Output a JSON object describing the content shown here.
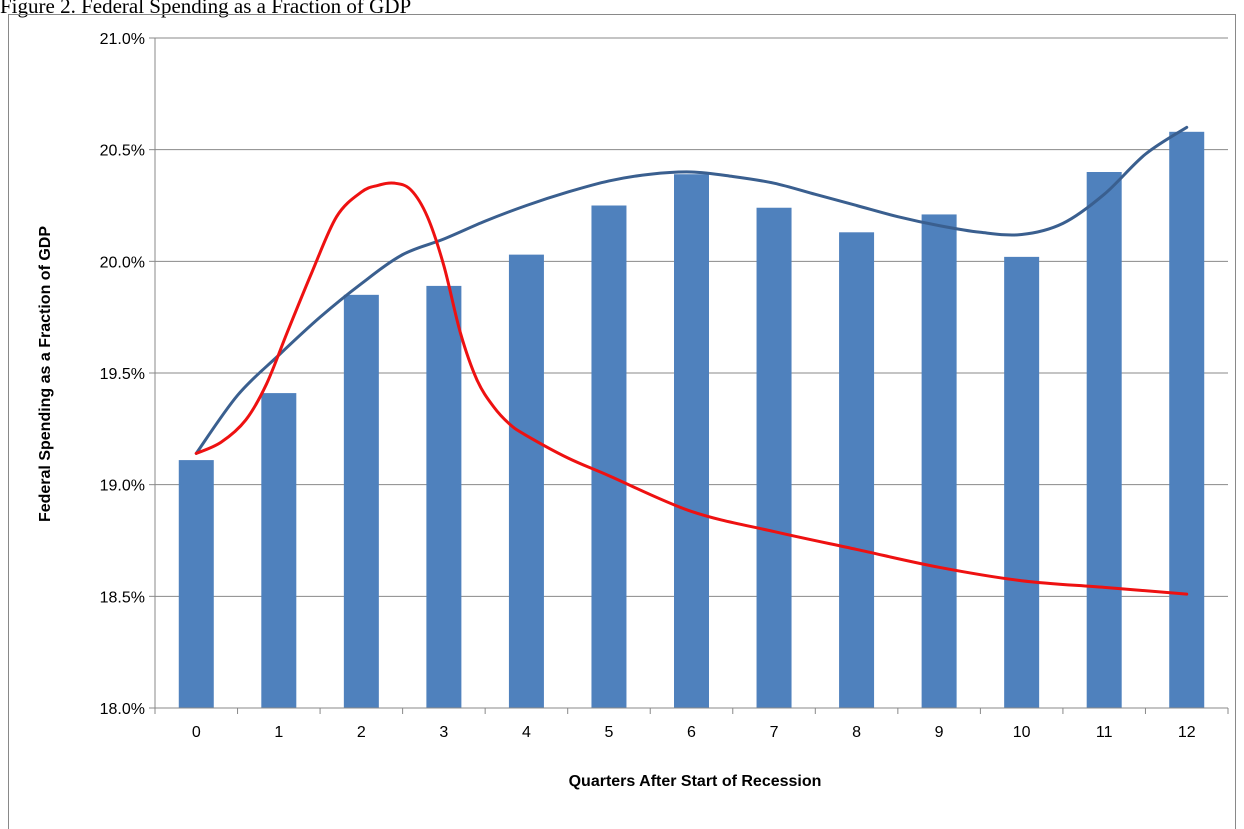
{
  "caption": "Figure 2. Federal Spending as a Fraction of GDP",
  "colors": {
    "bar": "#4f81bd",
    "trend": "#3a5f8f",
    "projection": "#ee1111",
    "grid": "#898989"
  },
  "chart_data": {
    "type": "bar",
    "xlabel": "Quarters After Start of Recession",
    "ylabel": "Federal Spending as a Fraction of GDP",
    "categories": [
      "0",
      "1",
      "2",
      "3",
      "4",
      "5",
      "6",
      "7",
      "8",
      "9",
      "10",
      "11",
      "12"
    ],
    "values": [
      19.11,
      19.41,
      19.85,
      19.89,
      20.03,
      20.25,
      20.39,
      20.24,
      20.13,
      20.21,
      20.02,
      20.4,
      20.58
    ],
    "ylim": [
      18.0,
      21.0
    ],
    "yticks": [
      "18.0%",
      "18.5%",
      "19.0%",
      "19.5%",
      "20.0%",
      "20.5%",
      "21.0%"
    ],
    "ytick_values": [
      18.0,
      18.5,
      19.0,
      19.5,
      20.0,
      20.5,
      21.0
    ],
    "grid": true,
    "legend": "none",
    "lines": [
      {
        "style": "smooth-trend",
        "points": [
          [
            0,
            19.14
          ],
          [
            0.5,
            19.4
          ],
          [
            1,
            19.58
          ],
          [
            1.5,
            19.75
          ],
          [
            2,
            19.9
          ],
          [
            2.5,
            20.03
          ],
          [
            3,
            20.1
          ],
          [
            3.5,
            20.18
          ],
          [
            4,
            20.25
          ],
          [
            4.5,
            20.31
          ],
          [
            5,
            20.36
          ],
          [
            5.5,
            20.39
          ],
          [
            6,
            20.4
          ],
          [
            6.5,
            20.38
          ],
          [
            7,
            20.35
          ],
          [
            7.5,
            20.3
          ],
          [
            8,
            20.25
          ],
          [
            8.5,
            20.2
          ],
          [
            9,
            20.16
          ],
          [
            9.5,
            20.13
          ],
          [
            10,
            20.12
          ],
          [
            10.5,
            20.17
          ],
          [
            11,
            20.3
          ],
          [
            11.5,
            20.48
          ],
          [
            12,
            20.6
          ]
        ]
      },
      {
        "style": "projection",
        "points": [
          [
            0,
            19.14
          ],
          [
            0.3,
            19.19
          ],
          [
            0.6,
            19.29
          ],
          [
            0.85,
            19.45
          ],
          [
            1.1,
            19.68
          ],
          [
            1.4,
            19.95
          ],
          [
            1.7,
            20.2
          ],
          [
            2,
            20.31
          ],
          [
            2.2,
            20.34
          ],
          [
            2.4,
            20.35
          ],
          [
            2.6,
            20.32
          ],
          [
            2.8,
            20.2
          ],
          [
            3,
            19.98
          ],
          [
            3.2,
            19.68
          ],
          [
            3.4,
            19.47
          ],
          [
            3.6,
            19.35
          ],
          [
            3.8,
            19.27
          ],
          [
            4,
            19.22
          ],
          [
            4.5,
            19.12
          ],
          [
            5,
            19.04
          ],
          [
            6,
            18.88
          ],
          [
            7,
            18.79
          ],
          [
            8,
            18.71
          ],
          [
            9,
            18.63
          ],
          [
            10,
            18.57
          ],
          [
            11,
            18.54
          ],
          [
            12,
            18.51
          ]
        ]
      }
    ]
  }
}
